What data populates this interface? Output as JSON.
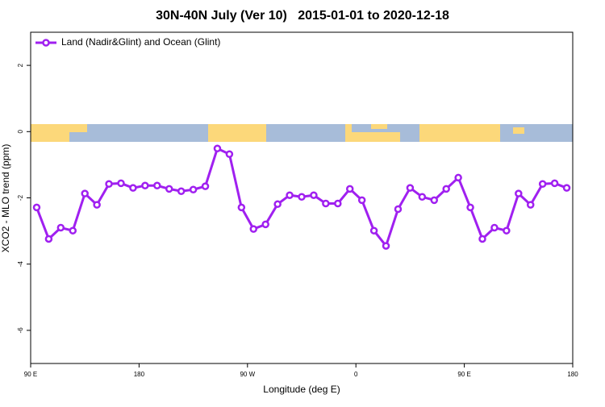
{
  "chart_data": {
    "type": "line",
    "title": "30N-40N July (Ver 10)   2015-01-01 to 2020-12-18",
    "xlabel": "Longitude (deg E)",
    "ylabel": "XCO2 - MLO trend (ppm)",
    "x": [
      95,
      105,
      115,
      125,
      135,
      145,
      155,
      165,
      175,
      185,
      195,
      205,
      215,
      225,
      235,
      245,
      255,
      265,
      275,
      285,
      295,
      305,
      315,
      325,
      335,
      345,
      355,
      365,
      375,
      385,
      395,
      405,
      415,
      425,
      435,
      445,
      455,
      465,
      475,
      485,
      495,
      505,
      515,
      525,
      535
    ],
    "series": [
      {
        "name": "Land (Nadir&Glint) and Ocean (Glint)",
        "color": "#a020f0",
        "values": [
          -2.29,
          -3.24,
          -2.9,
          -2.99,
          -1.87,
          -2.21,
          -1.58,
          -1.56,
          -1.7,
          -1.63,
          -1.63,
          -1.73,
          -1.8,
          -1.75,
          -1.65,
          -0.51,
          -0.68,
          -2.29,
          -2.94,
          -2.8,
          -2.19,
          -1.92,
          -1.97,
          -1.92,
          -2.17,
          -2.17,
          -1.73,
          -2.07,
          -2.99,
          -3.45,
          -2.34,
          -1.7,
          -1.97,
          -2.07,
          -1.73,
          -1.39,
          -2.29,
          -3.24,
          -2.9,
          -2.99,
          -1.87,
          -2.21,
          -1.58,
          -1.56,
          -1.7
        ]
      }
    ],
    "xlim": [
      90,
      540
    ],
    "xticks": [
      {
        "value": 90,
        "label": "90 E"
      },
      {
        "value": 180,
        "label": "180"
      },
      {
        "value": 270,
        "label": "90 W"
      },
      {
        "value": 360,
        "label": "0"
      },
      {
        "value": 450,
        "label": "90 E"
      },
      {
        "value": 540,
        "label": "180"
      }
    ],
    "ylim": [
      -7,
      3
    ],
    "yticks": [
      -6,
      -4,
      -2,
      0,
      2
    ],
    "legend": "top-left"
  }
}
